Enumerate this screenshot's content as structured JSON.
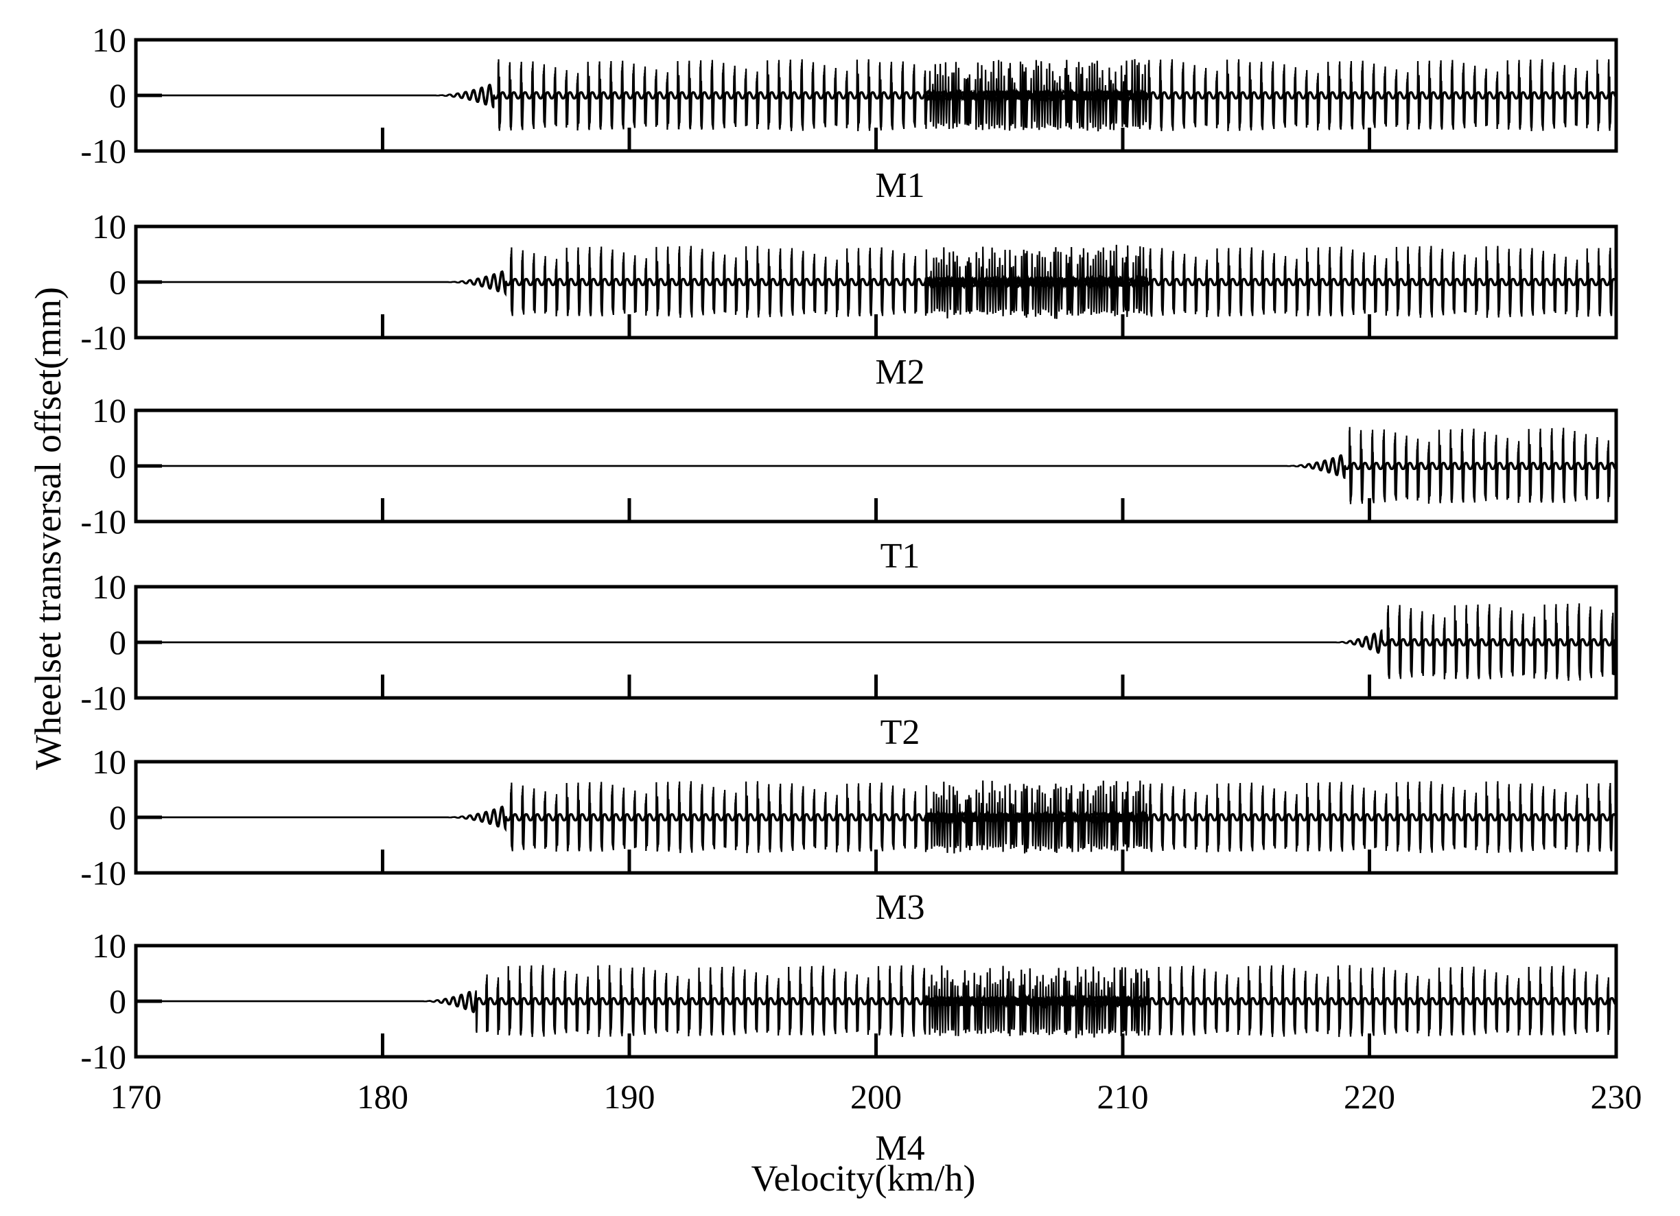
{
  "chart_data": {
    "type": "line",
    "layout": "six vertically stacked panels sharing x axis",
    "xlabel": "Velocity(km/h)",
    "ylabel": "Wheelset transversal offset(mm)",
    "xlim": [
      170,
      230
    ],
    "x_ticks": [
      "170",
      "180",
      "190",
      "200",
      "210",
      "220",
      "230"
    ],
    "ylim": [
      -10,
      10
    ],
    "y_ticks": [
      "10",
      "0",
      "-10"
    ],
    "grid": false,
    "legend": "none",
    "line_color": "#000000",
    "panels": [
      {
        "name": "M1",
        "onset_kmh": 182.0,
        "limit_cycle_start_kmh": 184.5,
        "limit_cycle_amplitude_mm": 6.5,
        "chaotic_region_kmh": [
          202,
          211
        ]
      },
      {
        "name": "M2",
        "onset_kmh": 182.5,
        "limit_cycle_start_kmh": 185.0,
        "limit_cycle_amplitude_mm": 6.5,
        "chaotic_region_kmh": [
          202,
          211
        ]
      },
      {
        "name": "T1",
        "onset_kmh": 216.5,
        "limit_cycle_start_kmh": 219.0,
        "limit_cycle_amplitude_mm": 7.0,
        "chaotic_region_kmh": null
      },
      {
        "name": "T2",
        "onset_kmh": 218.5,
        "limit_cycle_start_kmh": 220.5,
        "limit_cycle_amplitude_mm": 7.0,
        "chaotic_region_kmh": null
      },
      {
        "name": "M3",
        "onset_kmh": 182.5,
        "limit_cycle_start_kmh": 185.0,
        "limit_cycle_amplitude_mm": 6.5,
        "chaotic_region_kmh": [
          202,
          211
        ]
      },
      {
        "name": "M4",
        "onset_kmh": 181.5,
        "limit_cycle_start_kmh": 183.8,
        "limit_cycle_amplitude_mm": 6.5,
        "chaotic_region_kmh": [
          202,
          211
        ]
      }
    ]
  }
}
